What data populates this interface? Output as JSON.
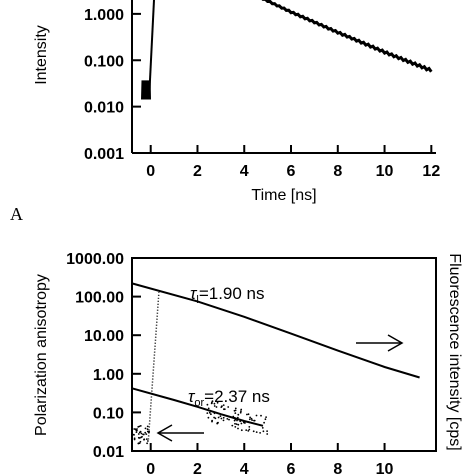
{
  "chart_data": [
    {
      "type": "line",
      "panel_label": "A",
      "xlabel": "Time [ns]",
      "ylabel": "Intensity",
      "xlim": [
        -0.8,
        12.2
      ],
      "ylim": [
        0.001,
        8
      ],
      "yscale": "log",
      "xticks": [
        "0",
        "2",
        "4",
        "6",
        "8",
        "10",
        "12"
      ],
      "yticks": [
        "0.001",
        "0.010",
        "0.100",
        "1.000"
      ],
      "ytick_values": [
        0.001,
        0.01,
        0.1,
        1
      ],
      "xtick_values": [
        0,
        2,
        4,
        6,
        8,
        10,
        12
      ],
      "grid": false,
      "series": [
        {
          "baseline": {
            "x": [
              -0.35,
              -0.05
            ],
            "y": [
              0.023,
              0.023
            ]
          },
          "rise": {
            "x": [
              -0.05,
              0.2
            ],
            "y": [
              0.023,
              8
            ]
          },
          "decay": {
            "x": [
              4,
              6,
              8,
              10,
              12
            ],
            "y": [
              3.3,
              1.1,
              0.4,
              0.15,
              0.06
            ]
          }
        }
      ]
    },
    {
      "type": "line",
      "xlabel": "",
      "ylabel": "Polarization anisotropy",
      "ylabel_right": "Fluorescence intensity [cps]",
      "xlim": [
        -0.8,
        12.2
      ],
      "ylim": [
        0.01,
        1000
      ],
      "yscale": "log",
      "xticks": [
        "0",
        "2",
        "4",
        "6",
        "8",
        "10"
      ],
      "xtick_values": [
        0,
        2,
        4,
        6,
        8,
        10
      ],
      "yticks": [
        "0.01",
        "0.10",
        "1.00",
        "10.00",
        "100.00",
        "1000.00"
      ],
      "ytick_values": [
        0.01,
        0.1,
        1,
        10,
        100,
        1000
      ],
      "grid": false,
      "annotations": [
        {
          "text": "τ",
          "sub": "l",
          "value": "=1.90 ns",
          "x": 3.0,
          "y": 180
        },
        {
          "text": "τ",
          "sub": "or",
          "value": "=2.37 ns",
          "x": 3.0,
          "y": 0.17
        }
      ],
      "series": [
        {
          "fluorescence": {
            "x": [
              -0.8,
              2,
              4,
              6,
              8,
              10,
              11.5
            ],
            "y": [
              220,
              75,
              30,
              11,
              4,
              1.5,
              0.8
            ]
          },
          "anisotropy": {
            "x": [
              -0.8,
              1,
              2,
              3,
              4,
              4.8
            ],
            "y": [
              0.42,
              0.21,
              0.14,
              0.09,
              0.06,
              0.045
            ]
          },
          "rise": {
            "x": [
              -0.1,
              0.35
            ],
            "y": [
              0.02,
              130
            ]
          }
        }
      ]
    }
  ]
}
